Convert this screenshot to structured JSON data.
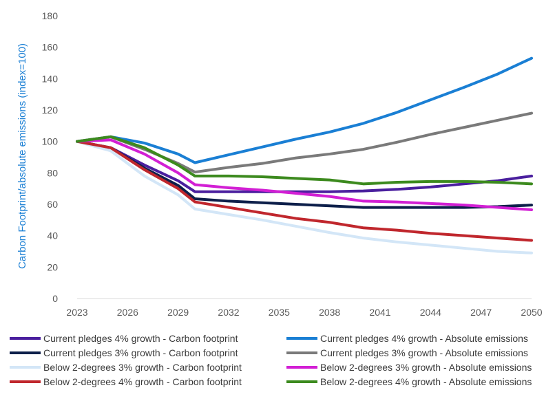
{
  "chart_data": {
    "type": "line",
    "title": "",
    "xlabel": "",
    "ylabel": "Carbon Footprint/absolute emissions (index=100)",
    "x": [
      2023,
      2025,
      2027,
      2029,
      2030,
      2032,
      2034,
      2036,
      2038,
      2040,
      2042,
      2044,
      2046,
      2048,
      2050
    ],
    "xticks": [
      "2023",
      "2026",
      "2029",
      "2032",
      "2035",
      "2038",
      "2041",
      "2044",
      "2047",
      "2050"
    ],
    "xlim": [
      2023,
      2050
    ],
    "ylim": [
      0,
      180
    ],
    "yticks": [
      "0",
      "20",
      "40",
      "60",
      "80",
      "100",
      "120",
      "140",
      "160",
      "180"
    ],
    "grid": false,
    "legend_position": "bottom",
    "series": [
      {
        "name": "Current pledges 4% growth - Carbon footprint",
        "color": "#4a1f9e",
        "values": [
          100,
          96,
          85,
          75,
          68,
          68,
          68,
          68,
          68,
          68.5,
          69.5,
          71,
          73,
          75,
          78
        ]
      },
      {
        "name": "Current pledges 3% growth - Carbon footprint",
        "color": "#0d1f4a",
        "values": [
          100,
          96,
          83,
          72,
          63.5,
          62,
          61,
          60,
          59,
          58,
          58,
          58,
          58,
          58.5,
          59.5
        ]
      },
      {
        "name": "Below 2-degrees 3% growth - Carbon footprint",
        "color": "#d3e6f7",
        "values": [
          100,
          94,
          78,
          66,
          57,
          53.5,
          50,
          46,
          42,
          38.5,
          36,
          34,
          32,
          30,
          29
        ]
      },
      {
        "name": "Below 2-degrees 4% growth - Carbon footprint",
        "color": "#c0272d",
        "values": [
          100,
          96,
          82,
          70,
          61.5,
          58,
          54.5,
          51,
          48.5,
          45,
          43.5,
          41.5,
          40,
          38.5,
          37
        ]
      },
      {
        "name": "Current pledges 4% growth - Absolute emissions",
        "color": "#1a7fd4",
        "values": [
          100,
          103,
          99,
          92,
          86.5,
          91.5,
          96.5,
          101.5,
          106,
          111.5,
          118.5,
          126.5,
          134.5,
          143,
          153
        ]
      },
      {
        "name": "Current pledges 3% growth - Absolute emissions",
        "color": "#7a7a7a",
        "values": [
          100,
          103,
          95,
          86,
          80.5,
          83.5,
          86,
          89.5,
          92,
          95,
          99.5,
          104.5,
          109,
          113.5,
          118
        ]
      },
      {
        "name": "Below 2-degrees 3% growth - Absolute emissions",
        "color": "#d21fd4",
        "values": [
          100,
          101,
          92,
          80,
          72.5,
          70.5,
          69,
          67,
          65,
          62,
          61.5,
          60.5,
          59.5,
          58,
          56.5
        ]
      },
      {
        "name": "Below 2-degrees 4% growth - Absolute emissions",
        "color": "#3c8a1e",
        "values": [
          100,
          103,
          96,
          85,
          78,
          78,
          77.5,
          76.5,
          75.5,
          73,
          74,
          74.5,
          74.5,
          74,
          73
        ]
      }
    ]
  }
}
